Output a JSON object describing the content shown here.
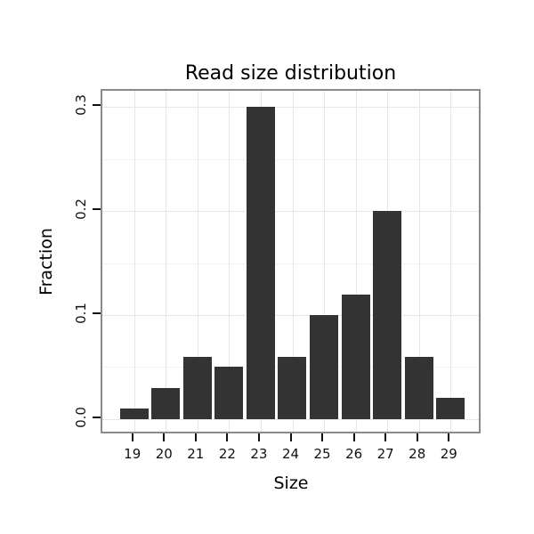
{
  "chart_data": {
    "type": "bar",
    "title": "Read size distribution",
    "xlabel": "Size",
    "ylabel": "Fraction",
    "categories": [
      "19",
      "20",
      "21",
      "22",
      "23",
      "24",
      "25",
      "26",
      "27",
      "28",
      "29"
    ],
    "values": [
      0.01,
      0.03,
      0.06,
      0.05,
      0.3,
      0.06,
      0.1,
      0.12,
      0.2,
      0.06,
      0.02
    ],
    "y_ticks": [
      0.0,
      0.1,
      0.2,
      0.3
    ],
    "y_tick_labels": [
      "0.0",
      "0.1",
      "0.2",
      "0.3"
    ],
    "y_minor_ticks": [
      0.05,
      0.15,
      0.25
    ],
    "ylim": [
      0,
      0.31
    ],
    "grid": true,
    "legend": "none",
    "bar_color": "#333333",
    "panel_border_color": "#8a8a8a",
    "grid_major_color": "#e6e6e6",
    "grid_minor_color": "#f2f2f2",
    "tick_color": "#111111"
  }
}
